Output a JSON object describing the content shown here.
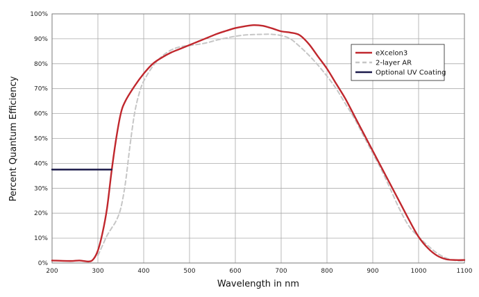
{
  "chart_data": {
    "type": "line",
    "title": "",
    "xlabel": "Wavelength in nm",
    "ylabel": "Percent Quantum Efficiency",
    "xlim": [
      200,
      1100
    ],
    "ylim": [
      0,
      100
    ],
    "x_ticks": [
      200,
      300,
      400,
      500,
      600,
      700,
      800,
      900,
      1000,
      1100
    ],
    "y_ticks": [
      0,
      10,
      20,
      30,
      40,
      50,
      60,
      70,
      80,
      90,
      100
    ],
    "y_tick_labels": [
      "0%",
      "10%",
      "20%",
      "30%",
      "40%",
      "50%",
      "60%",
      "70%",
      "80%",
      "90%",
      "100%"
    ],
    "grid": true,
    "legend_position": "top-right",
    "series": [
      {
        "name": "eXcelon3",
        "color": "#c0272d",
        "style": "solid",
        "points": [
          [
            200,
            1
          ],
          [
            240,
            0.8
          ],
          [
            260,
            1
          ],
          [
            280,
            0.6
          ],
          [
            290,
            1.5
          ],
          [
            300,
            5
          ],
          [
            310,
            12
          ],
          [
            320,
            22
          ],
          [
            330,
            37
          ],
          [
            340,
            50
          ],
          [
            350,
            60
          ],
          [
            360,
            65
          ],
          [
            380,
            71
          ],
          [
            400,
            76
          ],
          [
            420,
            80
          ],
          [
            440,
            82.5
          ],
          [
            460,
            84.5
          ],
          [
            480,
            86
          ],
          [
            500,
            87.5
          ],
          [
            520,
            89
          ],
          [
            540,
            90.5
          ],
          [
            560,
            92
          ],
          [
            580,
            93.2
          ],
          [
            600,
            94.3
          ],
          [
            620,
            95
          ],
          [
            640,
            95.5
          ],
          [
            660,
            95.2
          ],
          [
            680,
            94.2
          ],
          [
            700,
            93
          ],
          [
            720,
            92.5
          ],
          [
            740,
            91.5
          ],
          [
            760,
            88
          ],
          [
            780,
            83
          ],
          [
            800,
            78
          ],
          [
            820,
            72
          ],
          [
            840,
            66
          ],
          [
            860,
            59
          ],
          [
            880,
            52
          ],
          [
            900,
            45
          ],
          [
            920,
            38
          ],
          [
            940,
            31
          ],
          [
            960,
            24
          ],
          [
            980,
            17
          ],
          [
            1000,
            10.5
          ],
          [
            1020,
            6
          ],
          [
            1040,
            3
          ],
          [
            1060,
            1.5
          ],
          [
            1080,
            1.2
          ],
          [
            1100,
            1.2
          ]
        ]
      },
      {
        "name": "2-layer AR",
        "color": "#c6c6c6",
        "style": "dashed",
        "points": [
          [
            300,
            3
          ],
          [
            310,
            7
          ],
          [
            320,
            11
          ],
          [
            330,
            14
          ],
          [
            340,
            17
          ],
          [
            350,
            22
          ],
          [
            360,
            32
          ],
          [
            370,
            47
          ],
          [
            380,
            60
          ],
          [
            390,
            68
          ],
          [
            400,
            73
          ],
          [
            420,
            79
          ],
          [
            440,
            83
          ],
          [
            460,
            85.5
          ],
          [
            480,
            86.8
          ],
          [
            500,
            87.3
          ],
          [
            520,
            87.8
          ],
          [
            540,
            88.5
          ],
          [
            560,
            89.5
          ],
          [
            580,
            90.3
          ],
          [
            600,
            91
          ],
          [
            620,
            91.5
          ],
          [
            640,
            91.7
          ],
          [
            660,
            91.8
          ],
          [
            680,
            91.8
          ],
          [
            700,
            91.3
          ],
          [
            720,
            90
          ],
          [
            740,
            87
          ],
          [
            760,
            83.5
          ],
          [
            780,
            79.5
          ],
          [
            800,
            75
          ],
          [
            820,
            70
          ],
          [
            840,
            64
          ],
          [
            860,
            58
          ],
          [
            880,
            51
          ],
          [
            900,
            44
          ],
          [
            920,
            37
          ],
          [
            940,
            29
          ],
          [
            960,
            21
          ],
          [
            980,
            14.5
          ],
          [
            1000,
            10.5
          ],
          [
            1020,
            7
          ],
          [
            1040,
            4
          ],
          [
            1060,
            2
          ],
          [
            1080,
            1
          ],
          [
            1100,
            0.8
          ]
        ]
      },
      {
        "name": "Optional UV Coating",
        "color": "#1b1a4a",
        "style": "solid",
        "points": [
          [
            200,
            37.5
          ],
          [
            330,
            37.5
          ]
        ]
      }
    ]
  }
}
